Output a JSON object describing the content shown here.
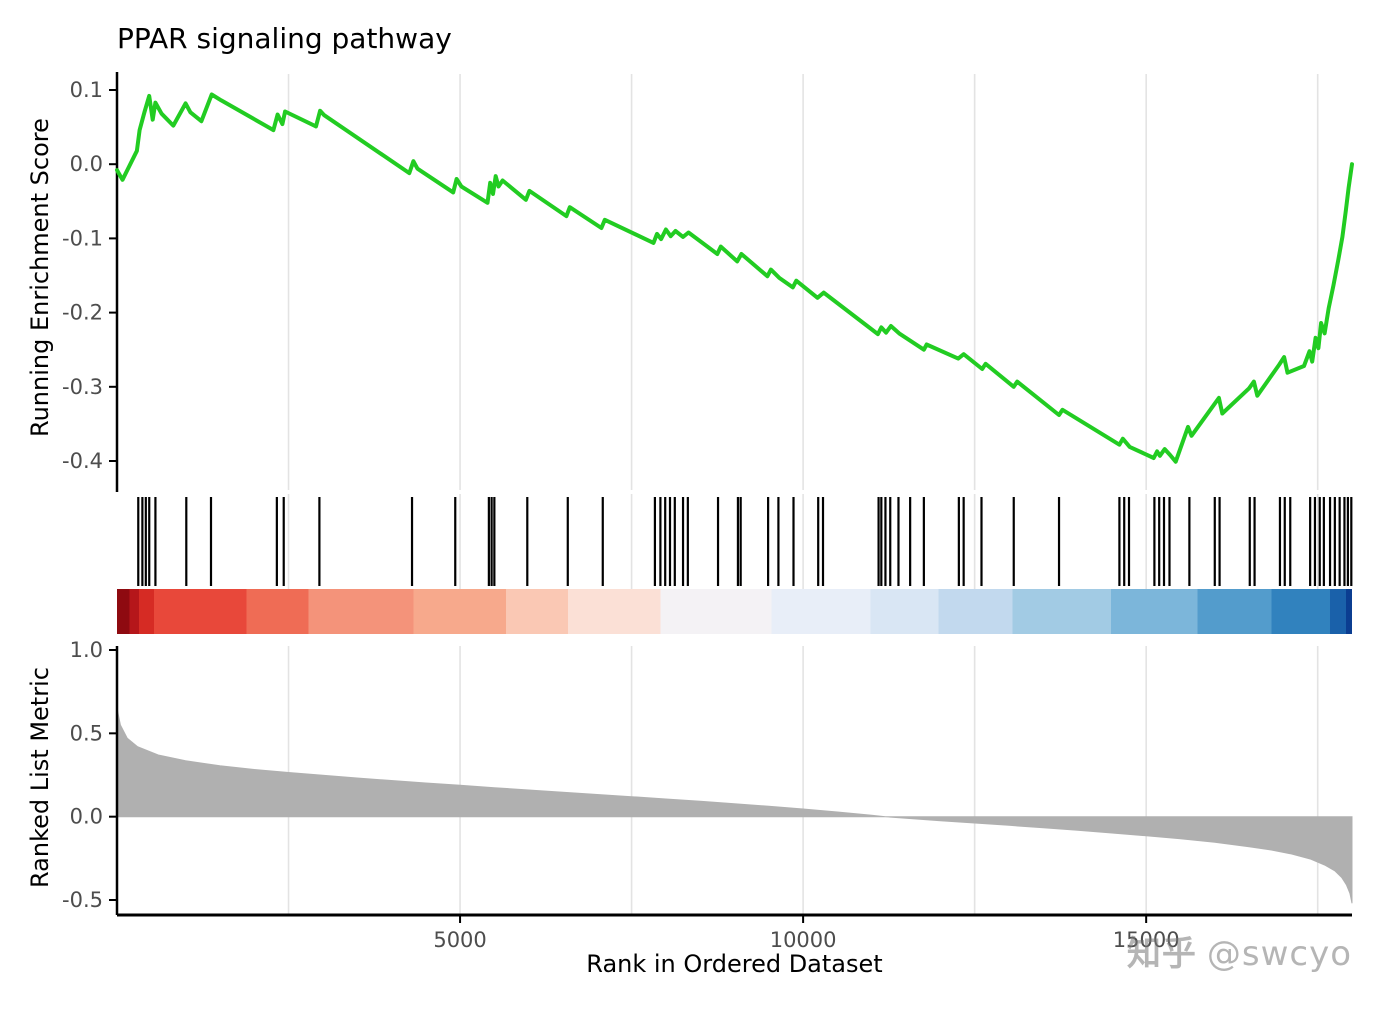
{
  "chart_data": {
    "type": "line",
    "title": "PPAR signaling pathway",
    "xlabel": "Rank in Ordered Dataset",
    "xlim": [
      0,
      18000
    ],
    "xticks": [
      {
        "value": 5000,
        "label": "5000"
      },
      {
        "value": 10000,
        "label": "10000"
      },
      {
        "value": 15000,
        "label": "15000"
      }
    ],
    "grid_x": [
      2500,
      5000,
      7500,
      10000,
      12500,
      15000,
      17500
    ],
    "grid_color": "#E3E3E3",
    "axis_color": "#000000",
    "tick_label_color": "#4D4D4D",
    "panels": {
      "enrichment": {
        "ylabel": "Running Enrichment Score",
        "ylim": [
          -0.42,
          0.12
        ],
        "yticks": [
          {
            "value": 0.1,
            "label": "0.1"
          },
          {
            "value": 0.0,
            "label": "0.0"
          },
          {
            "value": -0.1,
            "label": "-0.1"
          },
          {
            "value": -0.2,
            "label": "-0.2"
          },
          {
            "value": -0.3,
            "label": "-0.3"
          },
          {
            "value": -0.4,
            "label": "-0.4"
          }
        ],
        "line_color": "#22CC22",
        "series": [
          [
            0,
            -0.008
          ],
          [
            80,
            -0.021
          ],
          [
            290,
            0.018
          ],
          [
            330,
            0.046
          ],
          [
            400,
            0.07
          ],
          [
            470,
            0.092
          ],
          [
            520,
            0.06
          ],
          [
            560,
            0.083
          ],
          [
            650,
            0.068
          ],
          [
            820,
            0.052
          ],
          [
            1000,
            0.082
          ],
          [
            1070,
            0.07
          ],
          [
            1230,
            0.058
          ],
          [
            1380,
            0.094
          ],
          [
            1520,
            0.086
          ],
          [
            2280,
            0.046
          ],
          [
            2340,
            0.067
          ],
          [
            2410,
            0.054
          ],
          [
            2450,
            0.071
          ],
          [
            2900,
            0.051
          ],
          [
            2960,
            0.072
          ],
          [
            3020,
            0.066
          ],
          [
            4260,
            -0.012
          ],
          [
            4320,
            0.004
          ],
          [
            4380,
            -0.006
          ],
          [
            4900,
            -0.038
          ],
          [
            4950,
            -0.02
          ],
          [
            5020,
            -0.03
          ],
          [
            5400,
            -0.052
          ],
          [
            5440,
            -0.025
          ],
          [
            5480,
            -0.04
          ],
          [
            5520,
            -0.016
          ],
          [
            5560,
            -0.03
          ],
          [
            5620,
            -0.022
          ],
          [
            5960,
            -0.048
          ],
          [
            6010,
            -0.036
          ],
          [
            6550,
            -0.07
          ],
          [
            6600,
            -0.058
          ],
          [
            7060,
            -0.086
          ],
          [
            7110,
            -0.075
          ],
          [
            7820,
            -0.106
          ],
          [
            7870,
            -0.094
          ],
          [
            7930,
            -0.101
          ],
          [
            8000,
            -0.088
          ],
          [
            8070,
            -0.097
          ],
          [
            8140,
            -0.09
          ],
          [
            8250,
            -0.098
          ],
          [
            8330,
            -0.092
          ],
          [
            8750,
            -0.121
          ],
          [
            8800,
            -0.111
          ],
          [
            9040,
            -0.131
          ],
          [
            9100,
            -0.121
          ],
          [
            9480,
            -0.151
          ],
          [
            9530,
            -0.142
          ],
          [
            9650,
            -0.153
          ],
          [
            9850,
            -0.166
          ],
          [
            9900,
            -0.157
          ],
          [
            10210,
            -0.18
          ],
          [
            10300,
            -0.173
          ],
          [
            11090,
            -0.229
          ],
          [
            11140,
            -0.22
          ],
          [
            11210,
            -0.227
          ],
          [
            11280,
            -0.218
          ],
          [
            11400,
            -0.228
          ],
          [
            11760,
            -0.25
          ],
          [
            11800,
            -0.243
          ],
          [
            12260,
            -0.262
          ],
          [
            12340,
            -0.256
          ],
          [
            12610,
            -0.276
          ],
          [
            12660,
            -0.269
          ],
          [
            13070,
            -0.3
          ],
          [
            13120,
            -0.293
          ],
          [
            13730,
            -0.338
          ],
          [
            13780,
            -0.331
          ],
          [
            14610,
            -0.378
          ],
          [
            14660,
            -0.37
          ],
          [
            14760,
            -0.381
          ],
          [
            15110,
            -0.396
          ],
          [
            15160,
            -0.387
          ],
          [
            15200,
            -0.393
          ],
          [
            15270,
            -0.384
          ],
          [
            15350,
            -0.392
          ],
          [
            15430,
            -0.401
          ],
          [
            15610,
            -0.354
          ],
          [
            15660,
            -0.366
          ],
          [
            15990,
            -0.324
          ],
          [
            16060,
            -0.315
          ],
          [
            16110,
            -0.336
          ],
          [
            16500,
            -0.302
          ],
          [
            16570,
            -0.293
          ],
          [
            16620,
            -0.312
          ],
          [
            16940,
            -0.27
          ],
          [
            17010,
            -0.26
          ],
          [
            17060,
            -0.281
          ],
          [
            17300,
            -0.272
          ],
          [
            17380,
            -0.252
          ],
          [
            17420,
            -0.266
          ],
          [
            17470,
            -0.234
          ],
          [
            17510,
            -0.248
          ],
          [
            17550,
            -0.214
          ],
          [
            17600,
            -0.228
          ],
          [
            17660,
            -0.194
          ],
          [
            17730,
            -0.163
          ],
          [
            17800,
            -0.129
          ],
          [
            17860,
            -0.098
          ],
          [
            17910,
            -0.063
          ],
          [
            17950,
            -0.032
          ],
          [
            18000,
            0.0
          ]
        ]
      },
      "hits": {
        "tick_color": "#000000",
        "positions": [
          310,
          370,
          420,
          470,
          560,
          1010,
          1370,
          2330,
          2430,
          2950,
          4300,
          4930,
          5420,
          5460,
          5500,
          5980,
          6570,
          7080,
          7840,
          7920,
          7990,
          8060,
          8130,
          8250,
          8320,
          8760,
          9050,
          9090,
          9490,
          9640,
          9860,
          10220,
          10290,
          11100,
          11140,
          11200,
          11270,
          11390,
          11560,
          11760,
          12270,
          12340,
          12600,
          13070,
          13730,
          14610,
          14680,
          14750,
          15120,
          15190,
          15260,
          15340,
          15630,
          16000,
          16070,
          16510,
          16580,
          16950,
          17020,
          17100,
          17390,
          17460,
          17530,
          17590,
          17680,
          17750,
          17820,
          17890,
          17940,
          17990
        ]
      },
      "colorbar": {
        "stops": [
          {
            "from": 0.0,
            "to": 0.01,
            "color": "#8E0A10"
          },
          {
            "from": 0.01,
            "to": 0.018,
            "color": "#B5161A"
          },
          {
            "from": 0.018,
            "to": 0.03,
            "color": "#D62B24"
          },
          {
            "from": 0.03,
            "to": 0.105,
            "color": "#E8483A"
          },
          {
            "from": 0.105,
            "to": 0.155,
            "color": "#EF6C55"
          },
          {
            "from": 0.155,
            "to": 0.24,
            "color": "#F4937A"
          },
          {
            "from": 0.24,
            "to": 0.315,
            "color": "#F7A98C"
          },
          {
            "from": 0.315,
            "to": 0.365,
            "color": "#FAC8B4"
          },
          {
            "from": 0.365,
            "to": 0.44,
            "color": "#FBE0D6"
          },
          {
            "from": 0.44,
            "to": 0.53,
            "color": "#F4F2F5"
          },
          {
            "from": 0.53,
            "to": 0.61,
            "color": "#E8EEF8"
          },
          {
            "from": 0.61,
            "to": 0.665,
            "color": "#D9E6F4"
          },
          {
            "from": 0.665,
            "to": 0.725,
            "color": "#C2D9EE"
          },
          {
            "from": 0.725,
            "to": 0.805,
            "color": "#A2CBE4"
          },
          {
            "from": 0.805,
            "to": 0.875,
            "color": "#7CB6DA"
          },
          {
            "from": 0.875,
            "to": 0.935,
            "color": "#539CCC"
          },
          {
            "from": 0.935,
            "to": 0.982,
            "color": "#3182BE"
          },
          {
            "from": 0.982,
            "to": 0.995,
            "color": "#1A61AA"
          },
          {
            "from": 0.995,
            "to": 1.0,
            "color": "#0B3D91"
          }
        ]
      },
      "metric": {
        "ylabel": "Ranked List Metric",
        "ylim": [
          -0.55,
          1.05
        ],
        "yticks": [
          {
            "value": 1.0,
            "label": "1.0"
          },
          {
            "value": 0.5,
            "label": "0.5"
          },
          {
            "value": 0.0,
            "label": "0.0"
          },
          {
            "value": -0.5,
            "label": "-0.5"
          }
        ],
        "fill_color": "#B0B0B0",
        "series": [
          [
            0,
            0.65
          ],
          [
            50,
            0.55
          ],
          [
            150,
            0.47
          ],
          [
            300,
            0.42
          ],
          [
            600,
            0.37
          ],
          [
            1000,
            0.335
          ],
          [
            1500,
            0.305
          ],
          [
            2000,
            0.283
          ],
          [
            2500,
            0.265
          ],
          [
            3000,
            0.248
          ],
          [
            3500,
            0.232
          ],
          [
            4000,
            0.217
          ],
          [
            4500,
            0.202
          ],
          [
            5000,
            0.188
          ],
          [
            5500,
            0.174
          ],
          [
            6000,
            0.16
          ],
          [
            6500,
            0.147
          ],
          [
            7000,
            0.133
          ],
          [
            7500,
            0.12
          ],
          [
            8000,
            0.106
          ],
          [
            8500,
            0.092
          ],
          [
            9000,
            0.078
          ],
          [
            9500,
            0.062
          ],
          [
            10000,
            0.046
          ],
          [
            10500,
            0.028
          ],
          [
            11000,
            0.008
          ],
          [
            11200,
            0.0
          ],
          [
            11500,
            -0.01
          ],
          [
            12000,
            -0.024
          ],
          [
            12500,
            -0.038
          ],
          [
            13000,
            -0.052
          ],
          [
            13500,
            -0.067
          ],
          [
            14000,
            -0.082
          ],
          [
            14500,
            -0.098
          ],
          [
            15000,
            -0.115
          ],
          [
            15500,
            -0.133
          ],
          [
            16000,
            -0.154
          ],
          [
            16500,
            -0.18
          ],
          [
            16800,
            -0.198
          ],
          [
            17100,
            -0.222
          ],
          [
            17400,
            -0.255
          ],
          [
            17600,
            -0.29
          ],
          [
            17750,
            -0.325
          ],
          [
            17850,
            -0.365
          ],
          [
            17920,
            -0.41
          ],
          [
            17970,
            -0.46
          ],
          [
            18000,
            -0.52
          ]
        ]
      }
    },
    "watermark": {
      "logo": "知乎",
      "handle": "@swcyo"
    }
  }
}
